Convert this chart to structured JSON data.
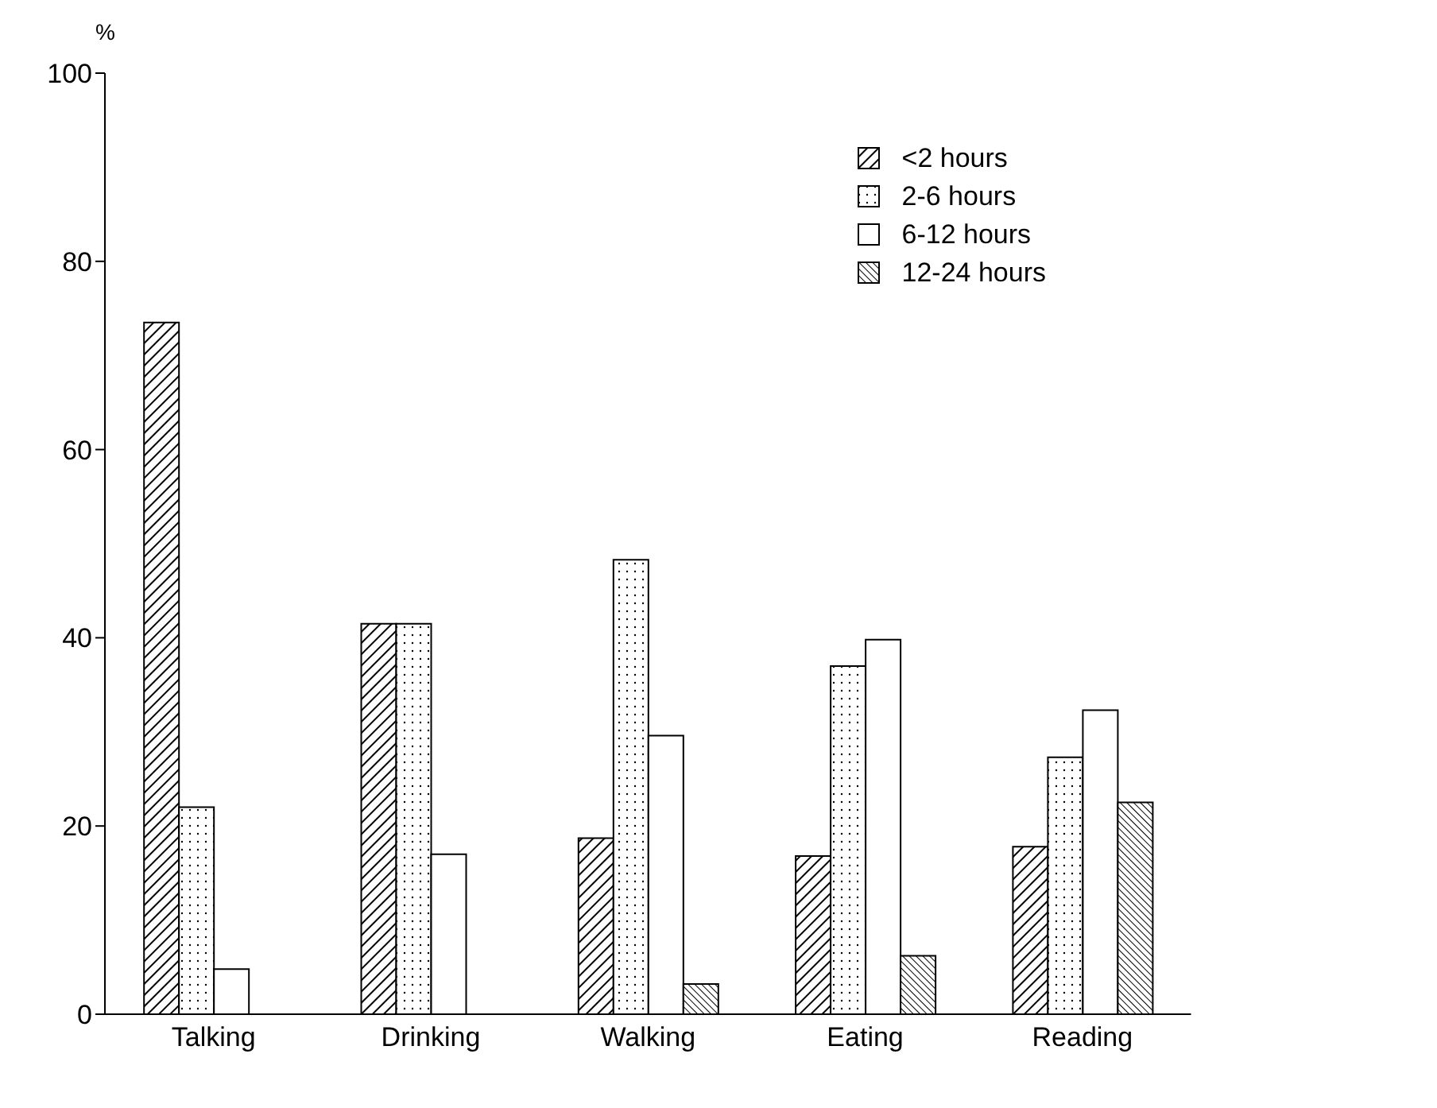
{
  "chart_data": {
    "type": "bar",
    "ylabel": "%",
    "categories": [
      "Talking",
      "Drinking",
      "Walking",
      "Eating",
      "Reading"
    ],
    "series": [
      {
        "name": "<2 hours",
        "color": "#000000",
        "values": [
          73.5,
          41.5,
          18.7,
          16.8,
          17.8
        ]
      },
      {
        "name": "2-6 hours",
        "color": "#000000",
        "values": [
          22,
          41.5,
          48.3,
          37,
          27.3
        ]
      },
      {
        "name": "6-12 hours",
        "color": "#000000",
        "values": [
          4.8,
          17,
          29.6,
          39.8,
          32.3
        ]
      },
      {
        "name": "12-24 hours",
        "color": "#000000",
        "values": [
          null,
          null,
          3.2,
          6.2,
          22.5
        ]
      }
    ],
    "ylim": [
      0,
      100
    ],
    "yticks": [
      0,
      20,
      40,
      60,
      80,
      100
    ],
    "grid": false,
    "legend": "top right"
  }
}
